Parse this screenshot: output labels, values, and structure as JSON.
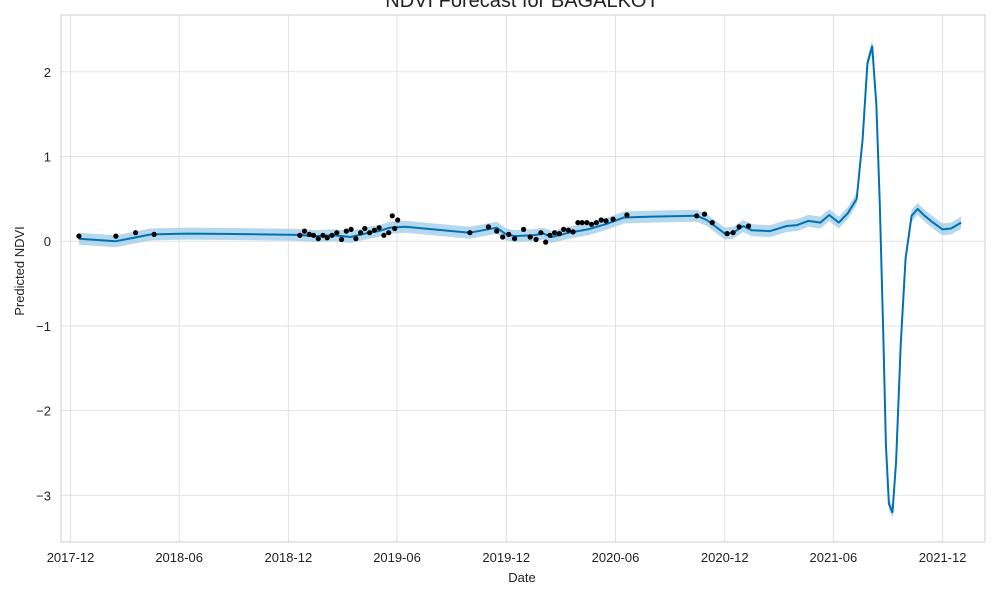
{
  "chart_data": {
    "type": "line",
    "title": "NDVI Forecast for BAGALKOT",
    "xlabel": "Date",
    "ylabel": "Predicted NDVI",
    "xlim": [
      "2017-11-15",
      "2022-02-10"
    ],
    "ylim": [
      -3.55,
      2.67
    ],
    "x_ticks": [
      "2017-12-01",
      "2018-06-01",
      "2018-12-01",
      "2019-06-01",
      "2019-12-01",
      "2020-06-01",
      "2020-12-01",
      "2021-06-01",
      "2021-12-01"
    ],
    "x_tick_labels": [
      "2017-12",
      "2018-06",
      "2018-12",
      "2019-06",
      "2019-12",
      "2020-06",
      "2020-12",
      "2021-06",
      "2021-12"
    ],
    "y_ticks": [
      2,
      1,
      0,
      -1,
      -2,
      -3
    ],
    "y_tick_labels": [
      "2",
      "1",
      "0",
      "−1",
      "−2",
      "−3"
    ],
    "grid": true,
    "colors": {
      "forecast": "#0072b2",
      "interval": "#9ccbe8",
      "observed": "#000000",
      "grid": "#e2e2e2",
      "frame": "#cccccc"
    },
    "series": [
      {
        "kind": "forecast",
        "x": [
          "2017-12-15",
          "2018-02-15",
          "2018-04-15",
          "2018-06-15",
          "2018-09-01",
          "2018-12-15",
          "2019-01-15",
          "2019-02-15",
          "2019-03-15",
          "2019-04-15",
          "2019-05-01",
          "2019-05-20",
          "2019-06-15",
          "2019-08-01",
          "2019-10-01",
          "2019-11-15",
          "2019-12-01",
          "2019-12-15",
          "2020-01-15",
          "2020-02-01",
          "2020-02-15",
          "2020-03-15",
          "2020-04-15",
          "2020-05-15",
          "2020-06-15",
          "2020-08-01",
          "2020-10-15",
          "2020-11-01",
          "2020-12-01",
          "2020-12-15",
          "2021-01-01",
          "2021-01-15",
          "2021-02-15",
          "2021-03-15",
          "2021-04-01",
          "2021-04-20",
          "2021-05-10",
          "2021-05-25",
          "2021-06-10",
          "2021-06-25",
          "2021-07-10",
          "2021-07-20",
          "2021-07-28",
          "2021-08-05",
          "2021-08-12",
          "2021-08-18",
          "2021-08-24",
          "2021-08-28",
          "2021-09-02",
          "2021-09-08",
          "2021-09-14",
          "2021-09-22",
          "2021-09-30",
          "2021-10-10",
          "2021-10-20",
          "2021-11-01",
          "2021-11-15",
          "2021-12-01",
          "2021-12-15",
          "2022-01-01"
        ],
        "y": [
          0.03,
          0.0,
          0.08,
          0.09,
          0.085,
          0.075,
          0.06,
          0.07,
          0.05,
          0.1,
          0.12,
          0.16,
          0.17,
          0.14,
          0.1,
          0.16,
          0.08,
          0.06,
          0.07,
          0.09,
          0.05,
          0.1,
          0.14,
          0.2,
          0.28,
          0.29,
          0.3,
          0.25,
          0.09,
          0.1,
          0.18,
          0.13,
          0.12,
          0.18,
          0.19,
          0.24,
          0.22,
          0.31,
          0.22,
          0.33,
          0.5,
          1.2,
          2.1,
          2.3,
          1.6,
          0.4,
          -1.2,
          -2.4,
          -3.1,
          -3.2,
          -2.6,
          -1.2,
          -0.2,
          0.3,
          0.38,
          0.3,
          0.22,
          0.14,
          0.15,
          0.22
        ]
      },
      {
        "kind": "observed",
        "x": [
          "2017-12-15",
          "2018-02-15",
          "2018-03-20",
          "2018-04-20",
          "2018-12-20",
          "2018-12-28",
          "2019-01-05",
          "2019-01-12",
          "2019-01-20",
          "2019-01-28",
          "2019-02-04",
          "2019-02-12",
          "2019-02-20",
          "2019-02-28",
          "2019-03-08",
          "2019-03-16",
          "2019-03-24",
          "2019-04-01",
          "2019-04-08",
          "2019-04-16",
          "2019-04-24",
          "2019-05-02",
          "2019-05-10",
          "2019-05-18",
          "2019-05-24",
          "2019-05-28",
          "2019-06-02",
          "2019-10-01",
          "2019-11-01",
          "2019-11-15",
          "2019-11-25",
          "2019-12-05",
          "2019-12-15",
          "2019-12-30",
          "2020-01-10",
          "2020-01-20",
          "2020-01-28",
          "2020-02-05",
          "2020-02-12",
          "2020-02-20",
          "2020-02-28",
          "2020-03-06",
          "2020-03-14",
          "2020-03-22",
          "2020-03-30",
          "2020-04-06",
          "2020-04-14",
          "2020-04-22",
          "2020-04-30",
          "2020-05-08",
          "2020-05-16",
          "2020-05-28",
          "2020-06-20",
          "2020-10-15",
          "2020-10-28",
          "2020-11-10",
          "2020-12-05",
          "2020-12-15",
          "2020-12-25",
          "2021-01-10"
        ],
        "y": [
          0.06,
          0.06,
          0.1,
          0.08,
          0.07,
          0.12,
          0.08,
          0.07,
          0.03,
          0.07,
          0.04,
          0.07,
          0.1,
          0.02,
          0.12,
          0.14,
          0.03,
          0.1,
          0.15,
          0.1,
          0.13,
          0.16,
          0.07,
          0.1,
          0.3,
          0.15,
          0.25,
          0.1,
          0.17,
          0.12,
          0.05,
          0.08,
          0.03,
          0.14,
          0.05,
          0.02,
          0.1,
          -0.01,
          0.07,
          0.1,
          0.09,
          0.14,
          0.13,
          0.11,
          0.22,
          0.22,
          0.22,
          0.2,
          0.22,
          0.25,
          0.24,
          0.26,
          0.31,
          0.3,
          0.32,
          0.22,
          0.09,
          0.1,
          0.17,
          0.18
        ]
      }
    ]
  }
}
